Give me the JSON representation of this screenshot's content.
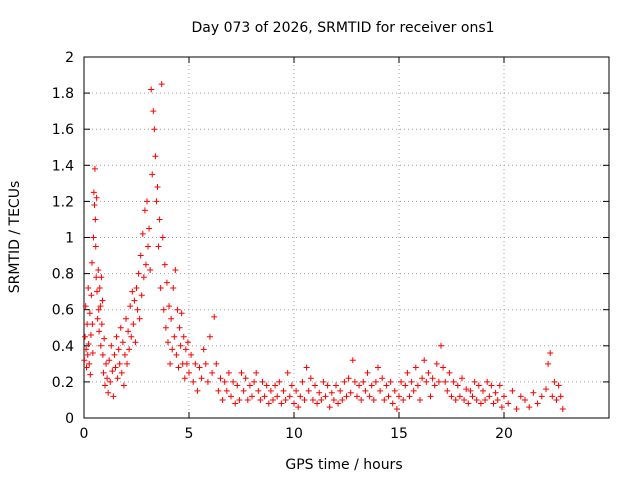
{
  "chart_data": {
    "type": "scatter",
    "title": "Day 073 of 2026, SRMTID for receiver ons1",
    "xlabel": "GPS time / hours",
    "ylabel": "SRMTID / TECUs",
    "xlim": [
      0,
      25
    ],
    "ylim": [
      0,
      2
    ],
    "xticks": [
      0,
      5,
      10,
      15,
      20
    ],
    "xtick_labels": [
      "0",
      "5",
      "10",
      "15",
      "20"
    ],
    "yticks": [
      0,
      0.2,
      0.4,
      0.6,
      0.8,
      1,
      1.2,
      1.4,
      1.6,
      1.8,
      2
    ],
    "ytick_labels": [
      "0",
      "0.2",
      "0.4",
      "0.6",
      "0.8",
      "1",
      "1.2",
      "1.4",
      "1.6",
      "1.8",
      "2"
    ],
    "grid": true,
    "marker": "+",
    "marker_color": "#ff0000",
    "series": [
      {
        "name": "SRMTID",
        "points": [
          [
            0.02,
            0.32
          ],
          [
            0.05,
            0.45
          ],
          [
            0.08,
            0.62
          ],
          [
            0.1,
            0.38
          ],
          [
            0.12,
            0.28
          ],
          [
            0.15,
            0.52
          ],
          [
            0.18,
            0.35
          ],
          [
            0.2,
            0.72
          ],
          [
            0.22,
            0.41
          ],
          [
            0.25,
            0.3
          ],
          [
            0.28,
            0.58
          ],
          [
            0.3,
            0.24
          ],
          [
            0.33,
            0.46
          ],
          [
            0.35,
            0.68
          ],
          [
            0.38,
            0.86
          ],
          [
            0.4,
            0.52
          ],
          [
            0.42,
            0.36
          ],
          [
            0.45,
            1.0
          ],
          [
            0.47,
            1.25
          ],
          [
            0.5,
            1.18
          ],
          [
            0.52,
            1.38
          ],
          [
            0.54,
            1.1
          ],
          [
            0.56,
            0.95
          ],
          [
            0.58,
            0.78
          ],
          [
            0.6,
            1.22
          ],
          [
            0.62,
            0.7
          ],
          [
            0.65,
            0.55
          ],
          [
            0.68,
            0.82
          ],
          [
            0.7,
            0.6
          ],
          [
            0.72,
            0.48
          ],
          [
            0.75,
            0.72
          ],
          [
            0.78,
            0.62
          ],
          [
            0.8,
            0.4
          ],
          [
            0.83,
            0.78
          ],
          [
            0.85,
            0.52
          ],
          [
            0.88,
            0.65
          ],
          [
            0.9,
            0.35
          ],
          [
            0.93,
            0.25
          ],
          [
            0.96,
            0.44
          ],
          [
            1.0,
            0.18
          ],
          [
            1.05,
            0.3
          ],
          [
            1.1,
            0.22
          ],
          [
            1.15,
            0.14
          ],
          [
            1.2,
            0.32
          ],
          [
            1.25,
            0.2
          ],
          [
            1.3,
            0.4
          ],
          [
            1.35,
            0.26
          ],
          [
            1.4,
            0.12
          ],
          [
            1.45,
            0.35
          ],
          [
            1.5,
            0.28
          ],
          [
            1.55,
            0.45
          ],
          [
            1.6,
            0.22
          ],
          [
            1.65,
            0.38
          ],
          [
            1.7,
            0.3
          ],
          [
            1.75,
            0.5
          ],
          [
            1.8,
            0.25
          ],
          [
            1.85,
            0.42
          ],
          [
            1.9,
            0.18
          ],
          [
            1.95,
            0.35
          ],
          [
            2.0,
            0.55
          ],
          [
            2.05,
            0.3
          ],
          [
            2.1,
            0.48
          ],
          [
            2.15,
            0.38
          ],
          [
            2.2,
            0.62
          ],
          [
            2.25,
            0.45
          ],
          [
            2.3,
            0.7
          ],
          [
            2.35,
            0.52
          ],
          [
            2.4,
            0.65
          ],
          [
            2.45,
            0.42
          ],
          [
            2.5,
            0.72
          ],
          [
            2.55,
            0.6
          ],
          [
            2.6,
            0.8
          ],
          [
            2.65,
            0.55
          ],
          [
            2.7,
            0.9
          ],
          [
            2.75,
            0.68
          ],
          [
            2.8,
            1.02
          ],
          [
            2.85,
            0.78
          ],
          [
            2.9,
            1.15
          ],
          [
            2.95,
            0.85
          ],
          [
            3.0,
            1.2
          ],
          [
            3.05,
            0.95
          ],
          [
            3.1,
            1.05
          ],
          [
            3.15,
            0.82
          ],
          [
            3.2,
            1.82
          ],
          [
            3.25,
            1.35
          ],
          [
            3.3,
            1.7
          ],
          [
            3.35,
            1.6
          ],
          [
            3.4,
            1.45
          ],
          [
            3.45,
            1.2
          ],
          [
            3.5,
            1.28
          ],
          [
            3.55,
            0.95
          ],
          [
            3.6,
            1.1
          ],
          [
            3.65,
            0.72
          ],
          [
            3.7,
            1.85
          ],
          [
            3.75,
            1.0
          ],
          [
            3.8,
            0.6
          ],
          [
            3.85,
            0.85
          ],
          [
            3.9,
            0.5
          ],
          [
            3.95,
            0.75
          ],
          [
            4.0,
            0.42
          ],
          [
            4.05,
            0.62
          ],
          [
            4.1,
            0.3
          ],
          [
            4.15,
            0.55
          ],
          [
            4.2,
            0.38
          ],
          [
            4.25,
            0.72
          ],
          [
            4.3,
            0.45
          ],
          [
            4.35,
            0.82
          ],
          [
            4.4,
            0.35
          ],
          [
            4.45,
            0.6
          ],
          [
            4.5,
            0.28
          ],
          [
            4.55,
            0.5
          ],
          [
            4.6,
            0.4
          ],
          [
            4.65,
            0.58
          ],
          [
            4.7,
            0.3
          ],
          [
            4.75,
            0.45
          ],
          [
            4.8,
            0.22
          ],
          [
            4.85,
            0.38
          ],
          [
            4.9,
            0.3
          ],
          [
            4.95,
            0.42
          ],
          [
            5.0,
            0.25
          ],
          [
            5.1,
            0.35
          ],
          [
            5.2,
            0.2
          ],
          [
            5.3,
            0.3
          ],
          [
            5.4,
            0.15
          ],
          [
            5.5,
            0.28
          ],
          [
            5.6,
            0.22
          ],
          [
            5.7,
            0.38
          ],
          [
            5.8,
            0.3
          ],
          [
            5.9,
            0.2
          ],
          [
            6.0,
            0.45
          ],
          [
            6.1,
            0.25
          ],
          [
            6.2,
            0.56
          ],
          [
            6.3,
            0.3
          ],
          [
            6.4,
            0.15
          ],
          [
            6.5,
            0.22
          ],
          [
            6.6,
            0.1
          ],
          [
            6.7,
            0.2
          ],
          [
            6.8,
            0.15
          ],
          [
            6.9,
            0.25
          ],
          [
            7.0,
            0.12
          ],
          [
            7.1,
            0.2
          ],
          [
            7.2,
            0.08
          ],
          [
            7.3,
            0.18
          ],
          [
            7.4,
            0.1
          ],
          [
            7.5,
            0.25
          ],
          [
            7.6,
            0.15
          ],
          [
            7.7,
            0.22
          ],
          [
            7.8,
            0.1
          ],
          [
            7.9,
            0.18
          ],
          [
            8.0,
            0.12
          ],
          [
            8.1,
            0.2
          ],
          [
            8.2,
            0.25
          ],
          [
            8.3,
            0.15
          ],
          [
            8.4,
            0.1
          ],
          [
            8.5,
            0.2
          ],
          [
            8.6,
            0.12
          ],
          [
            8.7,
            0.18
          ],
          [
            8.8,
            0.08
          ],
          [
            8.9,
            0.15
          ],
          [
            9.0,
            0.1
          ],
          [
            9.1,
            0.18
          ],
          [
            9.2,
            0.12
          ],
          [
            9.3,
            0.2
          ],
          [
            9.4,
            0.08
          ],
          [
            9.5,
            0.15
          ],
          [
            9.6,
            0.1
          ],
          [
            9.7,
            0.25
          ],
          [
            9.8,
            0.12
          ],
          [
            9.9,
            0.18
          ],
          [
            10.0,
            0.08
          ],
          [
            10.1,
            0.15
          ],
          [
            10.2,
            0.06
          ],
          [
            10.3,
            0.12
          ],
          [
            10.4,
            0.2
          ],
          [
            10.5,
            0.1
          ],
          [
            10.6,
            0.28
          ],
          [
            10.7,
            0.15
          ],
          [
            10.8,
            0.22
          ],
          [
            10.9,
            0.1
          ],
          [
            11.0,
            0.18
          ],
          [
            11.1,
            0.08
          ],
          [
            11.2,
            0.14
          ],
          [
            11.3,
            0.1
          ],
          [
            11.4,
            0.2
          ],
          [
            11.5,
            0.12
          ],
          [
            11.6,
            0.18
          ],
          [
            11.7,
            0.06
          ],
          [
            11.8,
            0.14
          ],
          [
            11.9,
            0.1
          ],
          [
            12.0,
            0.18
          ],
          [
            12.1,
            0.08
          ],
          [
            12.2,
            0.15
          ],
          [
            12.3,
            0.1
          ],
          [
            12.4,
            0.2
          ],
          [
            12.5,
            0.12
          ],
          [
            12.6,
            0.22
          ],
          [
            12.7,
            0.14
          ],
          [
            12.8,
            0.32
          ],
          [
            12.9,
            0.2
          ],
          [
            13.0,
            0.12
          ],
          [
            13.1,
            0.18
          ],
          [
            13.2,
            0.1
          ],
          [
            13.3,
            0.2
          ],
          [
            13.4,
            0.15
          ],
          [
            13.5,
            0.25
          ],
          [
            13.6,
            0.12
          ],
          [
            13.7,
            0.18
          ],
          [
            13.8,
            0.1
          ],
          [
            13.9,
            0.2
          ],
          [
            14.0,
            0.28
          ],
          [
            14.1,
            0.15
          ],
          [
            14.2,
            0.22
          ],
          [
            14.3,
            0.1
          ],
          [
            14.4,
            0.18
          ],
          [
            14.5,
            0.12
          ],
          [
            14.6,
            0.2
          ],
          [
            14.7,
            0.08
          ],
          [
            14.8,
            0.15
          ],
          [
            14.9,
            0.05
          ],
          [
            15.0,
            0.12
          ],
          [
            15.1,
            0.2
          ],
          [
            15.2,
            0.1
          ],
          [
            15.3,
            0.18
          ],
          [
            15.4,
            0.25
          ],
          [
            15.5,
            0.12
          ],
          [
            15.6,
            0.2
          ],
          [
            15.7,
            0.15
          ],
          [
            15.8,
            0.28
          ],
          [
            15.9,
            0.18
          ],
          [
            16.0,
            0.1
          ],
          [
            16.1,
            0.22
          ],
          [
            16.2,
            0.32
          ],
          [
            16.3,
            0.2
          ],
          [
            16.4,
            0.25
          ],
          [
            16.5,
            0.12
          ],
          [
            16.6,
            0.22
          ],
          [
            16.7,
            0.18
          ],
          [
            16.8,
            0.3
          ],
          [
            16.9,
            0.2
          ],
          [
            17.0,
            0.4
          ],
          [
            17.1,
            0.28
          ],
          [
            17.2,
            0.2
          ],
          [
            17.3,
            0.15
          ],
          [
            17.4,
            0.25
          ],
          [
            17.5,
            0.12
          ],
          [
            17.6,
            0.2
          ],
          [
            17.7,
            0.1
          ],
          [
            17.8,
            0.18
          ],
          [
            17.9,
            0.12
          ],
          [
            18.0,
            0.22
          ],
          [
            18.1,
            0.1
          ],
          [
            18.2,
            0.16
          ],
          [
            18.3,
            0.08
          ],
          [
            18.4,
            0.15
          ],
          [
            18.5,
            0.12
          ],
          [
            18.6,
            0.2
          ],
          [
            18.7,
            0.1
          ],
          [
            18.8,
            0.18
          ],
          [
            18.9,
            0.08
          ],
          [
            19.0,
            0.15
          ],
          [
            19.1,
            0.1
          ],
          [
            19.2,
            0.2
          ],
          [
            19.3,
            0.12
          ],
          [
            19.4,
            0.18
          ],
          [
            19.5,
            0.08
          ],
          [
            19.6,
            0.14
          ],
          [
            19.7,
            0.1
          ],
          [
            19.8,
            0.18
          ],
          [
            19.9,
            0.06
          ],
          [
            20.0,
            0.12
          ],
          [
            20.2,
            0.08
          ],
          [
            20.4,
            0.15
          ],
          [
            20.6,
            0.05
          ],
          [
            20.8,
            0.12
          ],
          [
            21.0,
            0.1
          ],
          [
            21.2,
            0.06
          ],
          [
            21.4,
            0.14
          ],
          [
            21.6,
            0.08
          ],
          [
            21.8,
            0.12
          ],
          [
            22.0,
            0.16
          ],
          [
            22.1,
            0.3
          ],
          [
            22.2,
            0.36
          ],
          [
            22.3,
            0.12
          ],
          [
            22.4,
            0.2
          ],
          [
            22.5,
            0.1
          ],
          [
            22.6,
            0.18
          ],
          [
            22.7,
            0.12
          ],
          [
            22.8,
            0.05
          ]
        ]
      }
    ]
  }
}
